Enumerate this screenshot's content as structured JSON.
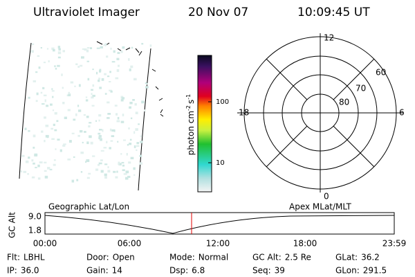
{
  "header": {
    "instrument": "Ultraviolet Imager",
    "date": "20 Nov 07",
    "time": "10:09:45 UT"
  },
  "colorbar": {
    "label": [
      "photon cm",
      "-2",
      "s",
      "-1"
    ],
    "ticks": [
      "100",
      "10"
    ]
  },
  "polar": {
    "lat_labels": [
      "60",
      "70",
      "80"
    ],
    "mlt_labels": [
      "12",
      "6",
      "0",
      "18"
    ]
  },
  "alt_plot": {
    "ylabel": "GC Alt",
    "yticks": [
      "9.0",
      "1.8"
    ],
    "left_label": "Geographic Lat/Lon",
    "right_label": "Apex MLat/MLT",
    "xticks": [
      "00:00",
      "06:00",
      "12:00",
      "18:00",
      "23:59"
    ]
  },
  "info": {
    "rows": [
      [
        {
          "label": "Flt:",
          "value": "LBHL"
        },
        {
          "label": "Door:",
          "value": "Open"
        },
        {
          "label": "Mode:",
          "value": "Normal"
        },
        {
          "label": "GC Alt:",
          "value": "2.5 Re"
        },
        {
          "label": "GLat:",
          "value": "36.2"
        }
      ],
      [
        {
          "label": "IP:",
          "value": "36.0"
        },
        {
          "label": "Gain:",
          "value": "14"
        },
        {
          "label": "Dsp:",
          "value": "6.8"
        },
        {
          "label": "Seq:",
          "value": "39"
        },
        {
          "label": "GLon:",
          "value": "291.5"
        }
      ]
    ]
  }
}
